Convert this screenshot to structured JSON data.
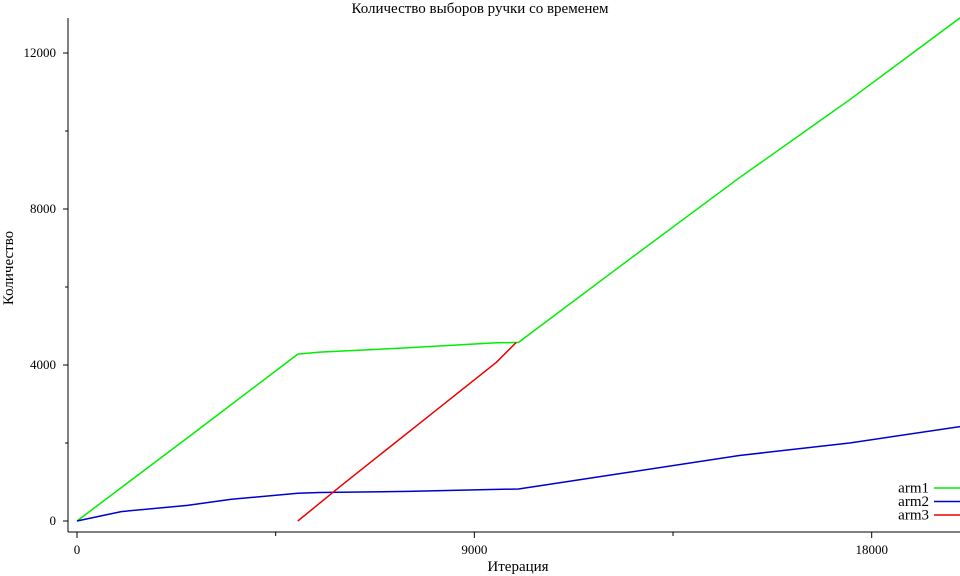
{
  "chart_data": {
    "type": "line",
    "title": "Количество выборов ручки со временем",
    "xlabel": "Итерация",
    "ylabel": "Количество",
    "xlim": [
      0,
      20000
    ],
    "ylim": [
      0,
      13000
    ],
    "xticks": [
      0,
      9000,
      18000
    ],
    "xticks_minor": [
      4500,
      13500
    ],
    "yticks": [
      0,
      4000,
      8000,
      12000
    ],
    "grid": false,
    "legend_position": "bottom-right",
    "series": [
      {
        "name": "arm1",
        "color": "#00ee00",
        "x": [
          0,
          2500,
          5000,
          5500,
          7500,
          9500,
          10000,
          12500,
          15000,
          17500,
          20000
        ],
        "y": [
          0,
          2130,
          4280,
          4330,
          4440,
          4570,
          4580,
          6700,
          8800,
          10800,
          12900
        ]
      },
      {
        "name": "arm2",
        "color": "#0000cc",
        "x": [
          0,
          1000,
          2500,
          3500,
          5000,
          5500,
          7500,
          9500,
          10000,
          12500,
          15000,
          17500,
          20000
        ],
        "y": [
          0,
          240,
          400,
          560,
          710,
          730,
          760,
          810,
          820,
          1250,
          1680,
          2000,
          2420
        ]
      },
      {
        "name": "arm3",
        "color": "#ee0000",
        "x": [
          5000,
          6000,
          7000,
          8000,
          9000,
          9500,
          9950
        ],
        "y": [
          0,
          920,
          1820,
          2720,
          3620,
          4070,
          4580
        ]
      }
    ]
  }
}
